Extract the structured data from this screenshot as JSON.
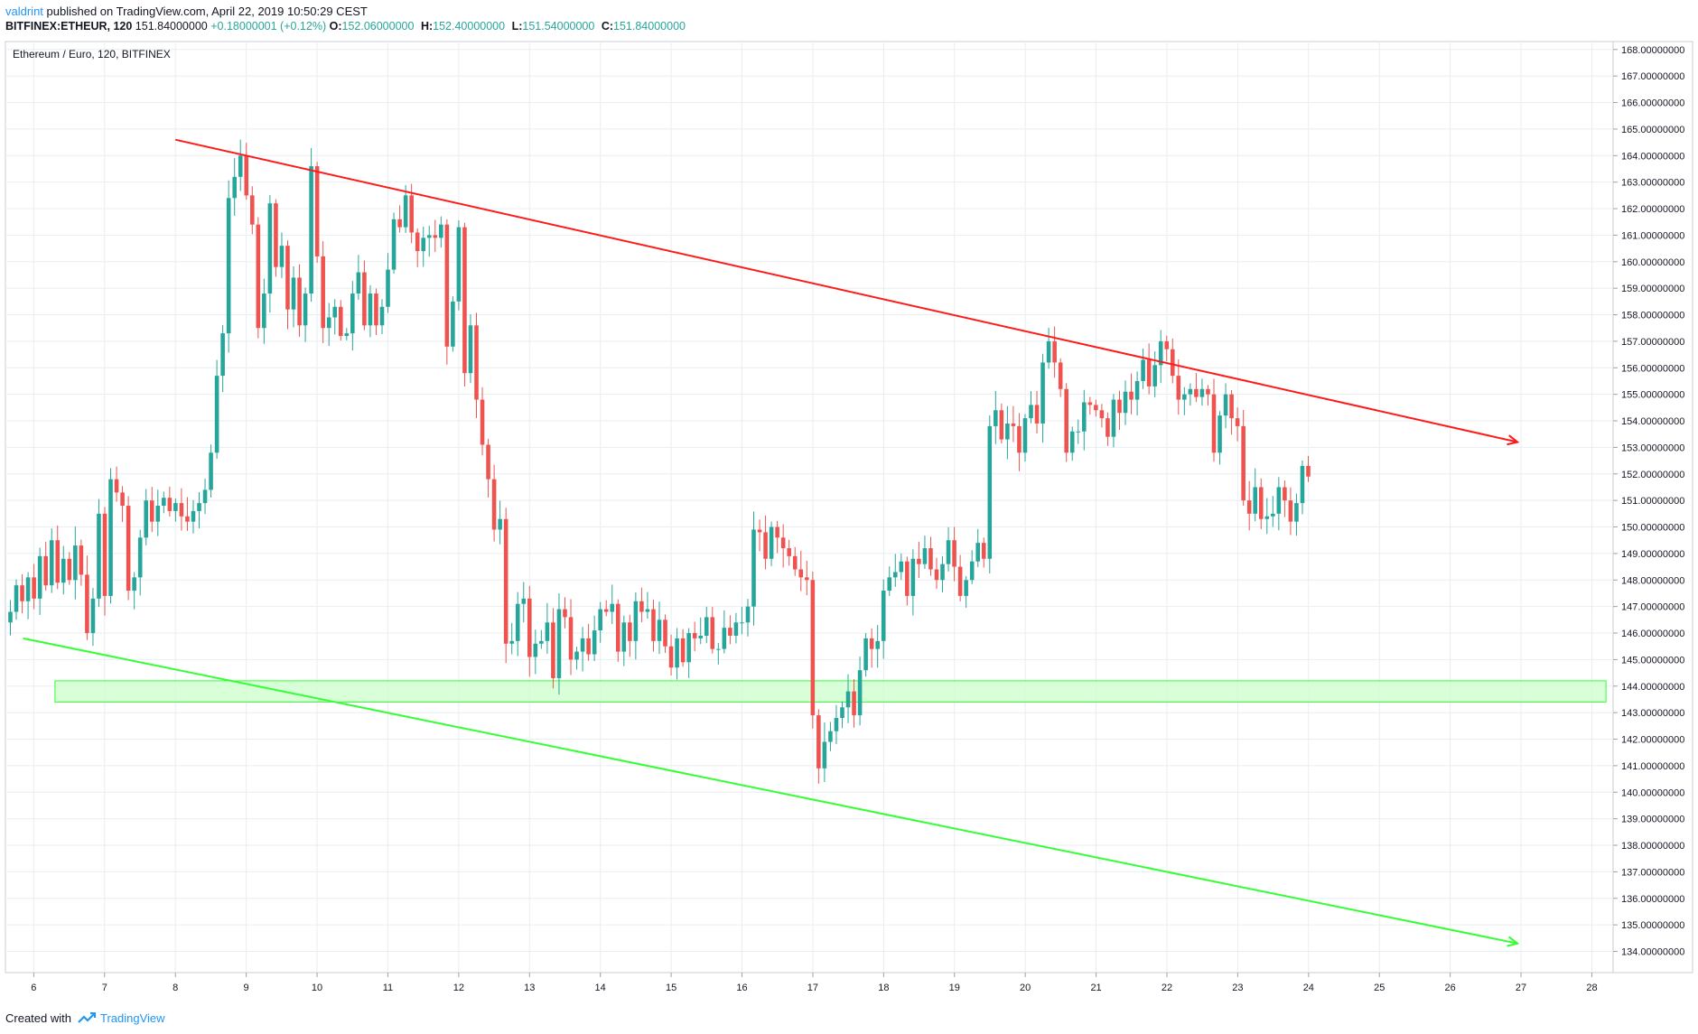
{
  "header": {
    "author": "valdrint",
    "published_text": " published on TradingView.com, April 22, 2019 10:50:29 CEST"
  },
  "ticker": {
    "symbol_line": "BITFINEX:ETHEUR, 120",
    "last": "151.84000000",
    "change": "+0.18000001 (+0.12%)",
    "open_label": "O:",
    "open": "152.06000000",
    "high_label": "H:",
    "high": "152.40000000",
    "low_label": "L:",
    "low": "151.54000000",
    "close_label": "C:",
    "close": "151.84000000"
  },
  "footer": {
    "created_with": "Created with",
    "brand": "TradingView"
  },
  "colors": {
    "up": "#26a69a",
    "down": "#ef5350",
    "resistance": "#ff1a1a",
    "support": "#33ff33",
    "support_zone_fill": "#ccffcc",
    "grid": "#e8eef2"
  },
  "chart_data": {
    "type": "candlestick",
    "title": "Ethereum / Euro, 120, BITFINEX",
    "x_ticks": [
      "6",
      "7",
      "8",
      "9",
      "10",
      "11",
      "12",
      "13",
      "14",
      "15",
      "16",
      "17",
      "18",
      "19",
      "20",
      "21",
      "22",
      "23",
      "24",
      "25",
      "26",
      "27",
      "28"
    ],
    "x_range": [
      5.6,
      28.3
    ],
    "y_range": [
      133.2,
      168.3
    ],
    "y_ticks": [
      "168.00000000",
      "167.00000000",
      "166.00000000",
      "165.00000000",
      "164.00000000",
      "163.00000000",
      "162.00000000",
      "161.00000000",
      "160.00000000",
      "159.00000000",
      "158.00000000",
      "157.00000000",
      "156.00000000",
      "155.00000000",
      "154.00000000",
      "153.00000000",
      "152.00000000",
      "151.00000000",
      "150.00000000",
      "149.00000000",
      "148.00000000",
      "147.00000000",
      "146.00000000",
      "145.00000000",
      "144.00000000",
      "143.00000000",
      "142.00000000",
      "141.00000000",
      "140.00000000",
      "139.00000000",
      "138.00000000",
      "137.00000000",
      "136.00000000",
      "135.00000000",
      "134.00000000"
    ],
    "grid": true,
    "start_day": 5.67,
    "bar_days": 0.0833,
    "closes": [
      146.8,
      147.8,
      147.2,
      148.1,
      147.3,
      148.9,
      147.8,
      149.5,
      147.9,
      148.8,
      148.0,
      149.3,
      148.2,
      146.0,
      147.3,
      150.5,
      147.4,
      151.8,
      151.3,
      150.8,
      147.6,
      148.1,
      149.6,
      151.0,
      150.2,
      150.8,
      151.1,
      150.6,
      150.9,
      150.4,
      150.2,
      150.6,
      150.9,
      151.4,
      152.8,
      155.7,
      157.3,
      162.4,
      163.2,
      164.0,
      162.5,
      161.4,
      157.5,
      158.8,
      162.2,
      159.8,
      160.6,
      158.2,
      159.4,
      157.6,
      158.8,
      163.6,
      160.2,
      157.5,
      157.9,
      158.3,
      157.2,
      157.3,
      158.8,
      159.6,
      157.6,
      158.8,
      157.6,
      158.3,
      159.7,
      161.6,
      161.3,
      162.5,
      161.1,
      160.4,
      160.9,
      161.0,
      160.9,
      161.4,
      156.8,
      158.5,
      161.3,
      155.8,
      157.6,
      154.8,
      153.1,
      151.8,
      149.9,
      150.3,
      145.6,
      145.7,
      147.1,
      147.3,
      145.1,
      145.6,
      145.7,
      146.4,
      144.3,
      146.9,
      146.6,
      145.0,
      145.3,
      145.8,
      145.2,
      146.1,
      146.9,
      146.8,
      147.1,
      145.3,
      146.4,
      145.7,
      147.2,
      146.8,
      146.9,
      145.7,
      146.5,
      145.5,
      144.7,
      145.8,
      144.9,
      146.0,
      145.8,
      145.9,
      146.6,
      145.4,
      145.4,
      146.2,
      145.9,
      146.4,
      146.4,
      147.0,
      149.9,
      149.8,
      148.8,
      150.0,
      149.6,
      149.2,
      148.9,
      148.4,
      148.1,
      148.0,
      142.9,
      140.9,
      141.9,
      142.3,
      142.8,
      143.2,
      143.8,
      142.9,
      144.6,
      145.8,
      145.4,
      145.7,
      147.6,
      148.1,
      148.3,
      148.7,
      147.4,
      148.8,
      148.6,
      149.2,
      148.4,
      148.0,
      148.6,
      149.5,
      148.5,
      147.4,
      148.0,
      148.7,
      149.4,
      148.8,
      153.8,
      154.4,
      153.3,
      153.9,
      153.8,
      152.8,
      154.1,
      154.6,
      153.9,
      156.2,
      157.0,
      156.2,
      155.2,
      152.8,
      153.6,
      153.6,
      154.7,
      154.6,
      154.4,
      154.1,
      153.4,
      154.8,
      154.3,
      155.1,
      154.8,
      155.5,
      156.3,
      155.3,
      156.1,
      157.0,
      156.7,
      155.7,
      154.8,
      155.0,
      155.2,
      154.9,
      155.2,
      155.0,
      152.8,
      154.2,
      155.0,
      154.1,
      153.8,
      151.0,
      150.5,
      151.5,
      150.3,
      150.4,
      150.5,
      151.5,
      151.0,
      150.2,
      150.9,
      152.3,
      151.9
    ],
    "opens_note": "each candle opens at the previous candle's close",
    "annotations": [
      {
        "type": "trendline",
        "role": "resistance",
        "color": "#ff1a1a",
        "from": {
          "x": 8.0,
          "y": 164.6
        },
        "to": {
          "x": 26.95,
          "y": 153.2
        }
      },
      {
        "type": "trendline",
        "role": "support",
        "color": "#33ff33",
        "from": {
          "x": 5.85,
          "y": 145.8
        },
        "to": {
          "x": 26.95,
          "y": 134.3
        }
      },
      {
        "type": "zone",
        "role": "support-zone",
        "color": "#33ff33",
        "x_from": 6.3,
        "x_to": 28.2,
        "y_low": 143.4,
        "y_high": 144.2
      }
    ]
  }
}
